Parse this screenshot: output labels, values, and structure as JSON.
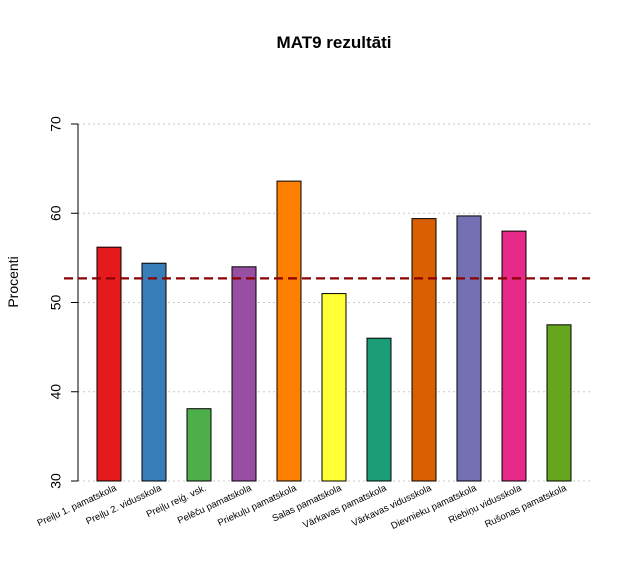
{
  "chart_data": {
    "type": "bar",
    "title": "MAT9 rezultāti",
    "xlabel": "",
    "ylabel": "Procenti",
    "ylim": [
      30,
      70
    ],
    "yticks": [
      30,
      40,
      50,
      60,
      70
    ],
    "grid": true,
    "reference_line": 52.7,
    "reference_line_color": "#8B0000",
    "categories": [
      "Preiļu 1. pamatskola",
      "Preiļu 2. vidusskola",
      "Preiļu reiģ. vsk.",
      "Pelēču pamatskola",
      "Priekuļu pamatskola",
      "Salas pamatskola",
      "Vārkavas pamatskola",
      "Vārkavas vidusskola",
      "Dievnieku pamatskola",
      "Riebiņu vidusskola",
      "Rušonas pamatskola"
    ],
    "values": [
      56.2,
      54.4,
      38.1,
      54.0,
      63.6,
      51.0,
      46.0,
      59.4,
      59.7,
      58.0,
      47.5
    ],
    "colors": [
      "#E41A1C",
      "#377EB8",
      "#4DAF4A",
      "#984EA3",
      "#FF7F00",
      "#FFFF33",
      "#1B9E77",
      "#D95F02",
      "#7570B3",
      "#E7298A",
      "#66A61E"
    ]
  }
}
